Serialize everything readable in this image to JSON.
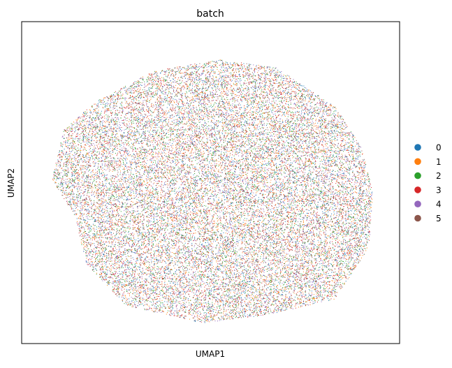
{
  "chart_data": {
    "type": "scatter",
    "title": "batch",
    "xlabel": "UMAP1",
    "ylabel": "UMAP2",
    "grid": false,
    "ticks": "hidden",
    "legend_position": "right",
    "legend": [
      {
        "label": "0",
        "color": "#1f77b4"
      },
      {
        "label": "1",
        "color": "#ff7f0e"
      },
      {
        "label": "2",
        "color": "#2ca02c"
      },
      {
        "label": "3",
        "color": "#d62728"
      },
      {
        "label": "4",
        "color": "#9467bd"
      },
      {
        "label": "5",
        "color": "#8c564b"
      }
    ],
    "point_cloud": {
      "description": "dense, well-mixed embedding cloud of all six batches",
      "outline": [
        [
          -0.78,
          0.33
        ],
        [
          -0.62,
          0.5
        ],
        [
          -0.3,
          0.7
        ],
        [
          0.05,
          0.77
        ],
        [
          0.35,
          0.72
        ],
        [
          0.66,
          0.48
        ],
        [
          0.8,
          0.22
        ],
        [
          0.86,
          -0.05
        ],
        [
          0.84,
          -0.4
        ],
        [
          0.66,
          -0.72
        ],
        [
          0.3,
          -0.82
        ],
        [
          -0.05,
          -0.87
        ],
        [
          -0.45,
          -0.76
        ],
        [
          -0.66,
          -0.5
        ],
        [
          -0.72,
          -0.2
        ],
        [
          -0.84,
          0.02
        ]
      ]
    }
  }
}
